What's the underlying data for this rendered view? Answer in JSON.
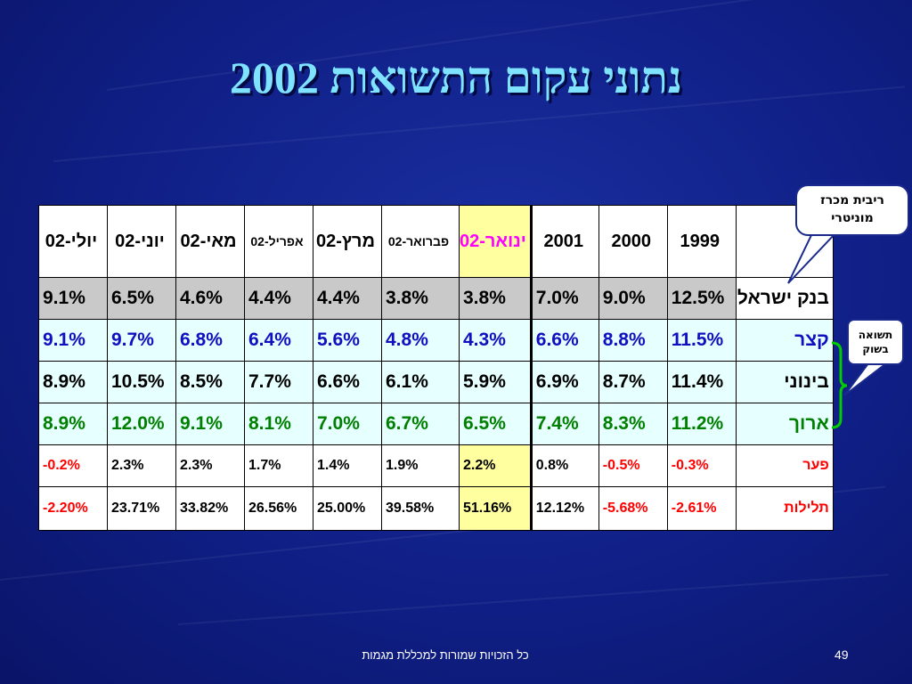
{
  "title": "נתוני עקום התשואות 2002",
  "callouts": {
    "monetary_rate": [
      "ריבית מכרז",
      "מוניטרי"
    ],
    "market_yield": [
      "תשואה",
      "בשוק"
    ]
  },
  "table": {
    "headers": [
      "",
      "1999",
      "2000",
      "2001",
      "ינואר-02",
      "פברואר-02",
      "מרץ-02",
      "אפריל-02",
      "מאי-02",
      "יוני-02",
      "יולי-02"
    ],
    "rows": [
      {
        "label": "בנק ישראל",
        "values": [
          "12.5%",
          "9.0%",
          "7.0%",
          "3.8%",
          "3.8%",
          "4.4%",
          "4.4%",
          "4.6%",
          "6.5%",
          "9.1%"
        ]
      },
      {
        "label": "קצר",
        "values": [
          "11.5%",
          "8.8%",
          "6.6%",
          "4.3%",
          "4.8%",
          "5.6%",
          "6.4%",
          "6.8%",
          "9.7%",
          "9.1%"
        ]
      },
      {
        "label": "בינוני",
        "values": [
          "11.4%",
          "8.7%",
          "6.9%",
          "5.9%",
          "6.1%",
          "6.6%",
          "7.7%",
          "8.5%",
          "10.5%",
          "8.9%"
        ]
      },
      {
        "label": "ארוך",
        "values": [
          "11.2%",
          "8.3%",
          "7.4%",
          "6.5%",
          "6.7%",
          "7.0%",
          "8.1%",
          "9.1%",
          "12.0%",
          "8.9%"
        ]
      },
      {
        "label": "פער",
        "values": [
          "-0.3%",
          "-0.5%",
          "0.8%",
          "2.2%",
          "1.9%",
          "1.4%",
          "1.7%",
          "2.3%",
          "2.3%",
          "-0.2%"
        ]
      },
      {
        "label": "תלילות",
        "values": [
          "-2.61%",
          "-5.68%",
          "12.12%",
          "51.16%",
          "39.58%",
          "25.00%",
          "26.56%",
          "33.82%",
          "23.71%",
          "-2.20%"
        ]
      }
    ]
  },
  "colors": {
    "background": "#0f1f86",
    "title": "#7fe3ff",
    "highlight": "#ffffa0",
    "yield_row_bg": "#e6ffff",
    "boi_row_bg": "#c9c9c9",
    "short_text": "#1010c0",
    "long_text": "#008000",
    "negative_text": "#ff0000",
    "label_text": "#ff0000"
  },
  "footer": {
    "copyright": "כל הזכויות שמורות למכללת מגמות",
    "page_number": "49"
  }
}
